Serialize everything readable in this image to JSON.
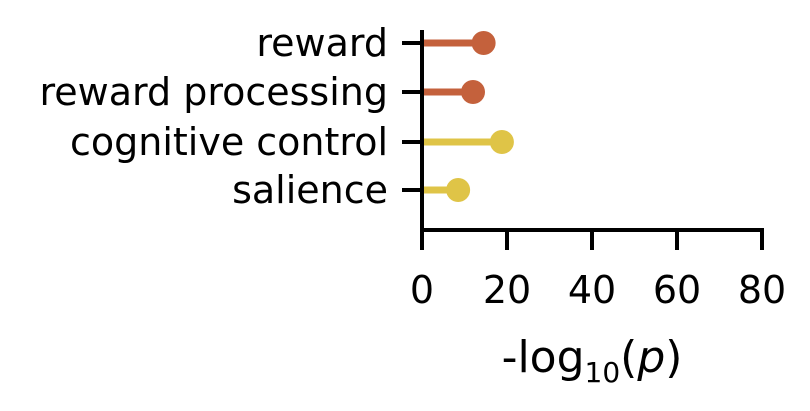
{
  "chart_data": {
    "type": "lollipop",
    "orientation": "horizontal",
    "title": "",
    "xlabel": "-log10(p)",
    "xlabel_parts": {
      "prefix": "-log",
      "subscript": "10",
      "open": "(",
      "var": "p",
      "close": ")"
    },
    "ylabel": "",
    "xlim": [
      0,
      80
    ],
    "xticks": [
      0,
      20,
      40,
      60,
      80
    ],
    "xtick_labels": [
      "0",
      "20",
      "40",
      "60",
      "80"
    ],
    "grid": false,
    "categories": [
      "reward",
      "reward processing",
      "cognitive control",
      "salience"
    ],
    "values": [
      14.5,
      12,
      18.8,
      8.5
    ],
    "colors": [
      "#c4613c",
      "#c4613c",
      "#dfc447",
      "#dfc447"
    ]
  }
}
